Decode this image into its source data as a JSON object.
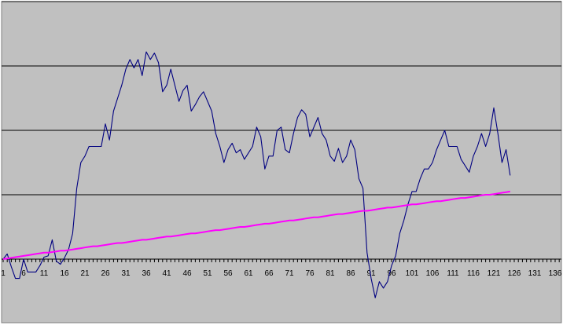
{
  "chart_data": {
    "type": "line",
    "title": "",
    "xlabel": "",
    "ylabel": "",
    "xlim": [
      1,
      137
    ],
    "ylim": [
      -1,
      4
    ],
    "grid": true,
    "y_tick_labels_shown": false,
    "x_tick_labels": [
      "1",
      "6",
      "11",
      "16",
      "21",
      "26",
      "31",
      "36",
      "41",
      "46",
      "51",
      "56",
      "61",
      "66",
      "71",
      "76",
      "81",
      "86",
      "91",
      "96",
      "101",
      "106",
      "111",
      "116",
      "121",
      "126",
      "131",
      "136"
    ],
    "x": [
      1,
      2,
      3,
      4,
      5,
      6,
      7,
      8,
      9,
      10,
      11,
      12,
      13,
      14,
      15,
      16,
      17,
      18,
      19,
      20,
      21,
      22,
      23,
      24,
      25,
      26,
      27,
      28,
      29,
      30,
      31,
      32,
      33,
      34,
      35,
      36,
      37,
      38,
      39,
      40,
      41,
      42,
      43,
      44,
      45,
      46,
      47,
      48,
      49,
      50,
      51,
      52,
      53,
      54,
      55,
      56,
      57,
      58,
      59,
      60,
      61,
      62,
      63,
      64,
      65,
      66,
      67,
      68,
      69,
      70,
      71,
      72,
      73,
      74,
      75,
      76,
      77,
      78,
      79,
      80,
      81,
      82,
      83,
      84,
      85,
      86,
      87,
      88,
      89,
      90,
      91,
      92,
      93,
      94,
      95,
      96,
      97,
      98,
      99,
      100,
      101,
      102,
      103,
      104,
      105,
      106,
      107,
      108,
      109,
      110,
      111,
      112,
      113,
      114,
      115,
      116,
      117,
      118,
      119,
      120,
      121,
      122,
      123,
      124,
      125
    ],
    "series": [
      {
        "color": "#000080",
        "values": [
          0,
          0.08,
          -0.12,
          -0.3,
          -0.3,
          0,
          -0.2,
          -0.2,
          -0.2,
          -0.1,
          0.03,
          0.05,
          0.3,
          -0.03,
          -0.08,
          0.02,
          0.15,
          0.4,
          1.1,
          1.5,
          1.6,
          1.75,
          1.75,
          1.75,
          1.75,
          2.1,
          1.85,
          2.3,
          2.5,
          2.7,
          2.95,
          3.1,
          2.97,
          3.1,
          2.85,
          3.22,
          3.1,
          3.2,
          3.05,
          2.6,
          2.7,
          2.95,
          2.7,
          2.45,
          2.62,
          2.7,
          2.3,
          2.4,
          2.52,
          2.6,
          2.45,
          2.3,
          1.95,
          1.75,
          1.5,
          1.7,
          1.8,
          1.65,
          1.7,
          1.55,
          1.65,
          1.75,
          2.05,
          1.9,
          1.4,
          1.6,
          1.6,
          2,
          2.05,
          1.7,
          1.65,
          1.95,
          2.2,
          2.32,
          2.25,
          1.9,
          2.05,
          2.2,
          1.95,
          1.85,
          1.6,
          1.52,
          1.72,
          1.5,
          1.6,
          1.85,
          1.7,
          1.25,
          1.1,
          0.1,
          -0.3,
          -0.6,
          -0.35,
          -0.45,
          -0.35,
          -0.1,
          0.05,
          0.4,
          0.6,
          0.85,
          1.05,
          1.05,
          1.25,
          1.4,
          1.4,
          1.5,
          1.7,
          1.85,
          2.0,
          1.75,
          1.75,
          1.75,
          1.55,
          1.45,
          1.35,
          1.6,
          1.75,
          1.95,
          1.75,
          1.95,
          2.35,
          1.95,
          1.5,
          1.7,
          1.3
        ]
      },
      {
        "color": "#FF00FF",
        "values": [
          0,
          0.01,
          0.02,
          0.03,
          0.04,
          0.05,
          0.06,
          0.07,
          0.08,
          0.09,
          0.1,
          0.1,
          0.11,
          0.12,
          0.13,
          0.13,
          0.14,
          0.15,
          0.16,
          0.17,
          0.18,
          0.19,
          0.2,
          0.2,
          0.21,
          0.22,
          0.23,
          0.24,
          0.25,
          0.25,
          0.26,
          0.27,
          0.28,
          0.29,
          0.3,
          0.3,
          0.31,
          0.32,
          0.33,
          0.34,
          0.35,
          0.35,
          0.36,
          0.37,
          0.38,
          0.39,
          0.4,
          0.4,
          0.41,
          0.42,
          0.43,
          0.44,
          0.45,
          0.45,
          0.46,
          0.47,
          0.48,
          0.49,
          0.5,
          0.5,
          0.51,
          0.52,
          0.53,
          0.54,
          0.55,
          0.55,
          0.56,
          0.57,
          0.58,
          0.59,
          0.6,
          0.6,
          0.61,
          0.62,
          0.63,
          0.64,
          0.65,
          0.65,
          0.66,
          0.67,
          0.68,
          0.69,
          0.7,
          0.7,
          0.71,
          0.72,
          0.73,
          0.74,
          0.75,
          0.75,
          0.76,
          0.77,
          0.78,
          0.79,
          0.8,
          0.8,
          0.81,
          0.82,
          0.83,
          0.84,
          0.85,
          0.85,
          0.86,
          0.87,
          0.88,
          0.89,
          0.9,
          0.9,
          0.91,
          0.92,
          0.93,
          0.94,
          0.95,
          0.95,
          0.96,
          0.97,
          0.98,
          0.99,
          1.0,
          1.0,
          1.01,
          1.02,
          1.03,
          1.04,
          1.05
        ]
      }
    ],
    "colors": {
      "plot_background": "#C0C0C0",
      "gridline": "#000000",
      "outer_background": "#FFFFFF"
    }
  }
}
